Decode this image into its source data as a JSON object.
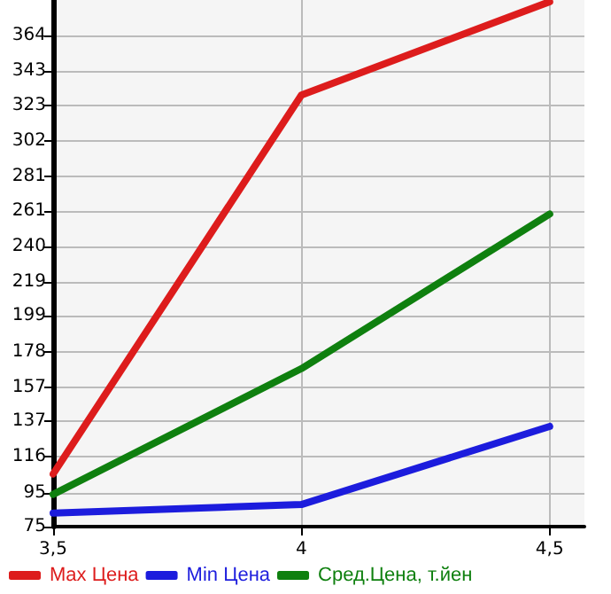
{
  "chart_data": {
    "type": "line",
    "x": [
      3.5,
      4,
      4.5
    ],
    "series": [
      {
        "name": "Max Цена",
        "color": "#dd1c1c",
        "values": [
          106,
          329,
          384
        ]
      },
      {
        "name": "Min Цена",
        "color": "#1c1cdd",
        "values": [
          83,
          88,
          134
        ]
      },
      {
        "name": "Сред.Цена, т.йен",
        "color": "#0f800f",
        "values": [
          94,
          168,
          259
        ]
      }
    ],
    "xlim": [
      3.5,
      4.57
    ],
    "xticks": [
      {
        "value": 3.5,
        "label": "3,5"
      },
      4,
      {
        "value": 4.5,
        "label": "4,5"
      }
    ],
    "ylim": [
      75,
      385
    ],
    "yticks": [
      75,
      95,
      116,
      137,
      157,
      178,
      199,
      219,
      240,
      261,
      281,
      302,
      323,
      343,
      364
    ],
    "grid": true,
    "legend": "bottom",
    "marker": "none",
    "line_style": "solid"
  }
}
